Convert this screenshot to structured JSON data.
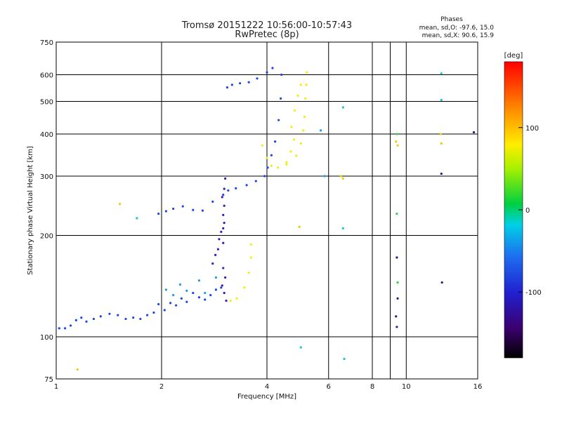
{
  "chart_data": {
    "type": "scatter",
    "title": "Tromsø 20151222 10:56:00-10:57:43",
    "subtitle": "RwPretec (8p)",
    "xlabel": "Frequency [MHz]",
    "ylabel": "Stationary phase Virtual Height [km]",
    "x_scale": "log",
    "y_scale": "log",
    "xlim": [
      1,
      16
    ],
    "ylim": [
      75,
      750
    ],
    "x_ticks": [
      1,
      2,
      4,
      6,
      8,
      10,
      16
    ],
    "x_tick_labels": [
      "1",
      "2",
      "4",
      "6",
      "8",
      "10",
      "16"
    ],
    "x_minor_ticks": [
      9
    ],
    "y_ticks": [
      75,
      100,
      200,
      300,
      400,
      500,
      600,
      750
    ],
    "y_tick_labels": [
      "75",
      "100",
      "200",
      "300",
      "400",
      "500",
      "600",
      "750"
    ],
    "grid": true,
    "annotation": {
      "title": "Phases",
      "line1": "mean, sd,O: -97.6, 15.0",
      "line2": "mean, sd,X:  90.6, 15.9"
    },
    "colorbar": {
      "label": "[deg]",
      "range": [
        -180,
        180
      ],
      "ticks": [
        100,
        0,
        -100
      ],
      "tick_labels": [
        "100",
        "0",
        "-100"
      ],
      "colormap": "rainbow"
    },
    "series": [
      {
        "phase_deg": -100,
        "color": "#1e46e6",
        "points": [
          [
            1.02,
            106
          ],
          [
            1.06,
            106
          ],
          [
            1.1,
            108
          ],
          [
            1.14,
            112
          ],
          [
            1.18,
            114
          ],
          [
            1.22,
            111
          ],
          [
            1.28,
            113
          ],
          [
            1.34,
            115
          ],
          [
            1.42,
            117
          ],
          [
            1.5,
            116
          ],
          [
            1.58,
            113
          ],
          [
            1.66,
            114
          ],
          [
            1.74,
            113
          ],
          [
            1.82,
            116
          ],
          [
            1.9,
            118
          ],
          [
            1.96,
            125
          ],
          [
            2.04,
            120
          ],
          [
            2.12,
            126
          ],
          [
            2.2,
            124
          ],
          [
            2.28,
            130
          ],
          [
            2.36,
            127
          ],
          [
            2.46,
            135
          ],
          [
            2.56,
            131
          ],
          [
            2.66,
            129
          ],
          [
            2.76,
            133
          ],
          [
            2.86,
            138
          ],
          [
            2.96,
            140
          ],
          [
            1.96,
            232
          ],
          [
            2.06,
            236
          ],
          [
            2.16,
            240
          ],
          [
            2.3,
            244
          ],
          [
            2.46,
            238
          ],
          [
            2.62,
            237
          ],
          [
            2.8,
            252
          ],
          [
            3.0,
            264
          ],
          [
            3.1,
            272
          ],
          [
            3.26,
            276
          ],
          [
            3.5,
            282
          ],
          [
            3.72,
            290
          ],
          [
            3.94,
            300
          ],
          [
            4.02,
            318
          ],
          [
            4.12,
            346
          ],
          [
            4.22,
            380
          ],
          [
            4.32,
            440
          ],
          [
            4.38,
            510
          ],
          [
            4.4,
            600
          ],
          [
            3.08,
            550
          ],
          [
            3.18,
            560
          ],
          [
            3.35,
            566
          ],
          [
            3.55,
            570
          ],
          [
            3.75,
            585
          ],
          [
            4.0,
            610
          ],
          [
            4.15,
            628
          ]
        ]
      },
      {
        "phase_deg": -130,
        "color": "#4018b8",
        "points": [
          [
            2.8,
            165
          ],
          [
            2.85,
            175
          ],
          [
            2.9,
            182
          ],
          [
            2.92,
            195
          ],
          [
            2.96,
            205
          ],
          [
            3.0,
            210
          ],
          [
            3.02,
            218
          ],
          [
            3.0,
            230
          ],
          [
            3.02,
            245
          ],
          [
            2.98,
            260
          ],
          [
            3.02,
            275
          ],
          [
            3.04,
            295
          ],
          [
            3.0,
            160
          ],
          [
            3.04,
            150
          ],
          [
            2.98,
            142
          ],
          [
            3.02,
            135
          ],
          [
            3.06,
            128
          ],
          [
            3.0,
            190
          ]
        ]
      },
      {
        "phase_deg": 100,
        "color": "#f0ee10",
        "points": [
          [
            3.88,
            370
          ],
          [
            4.0,
            340
          ],
          [
            4.12,
            322
          ],
          [
            4.3,
            318
          ],
          [
            4.55,
            325
          ],
          [
            4.85,
            345
          ],
          [
            5.0,
            375
          ],
          [
            5.08,
            410
          ],
          [
            5.12,
            450
          ],
          [
            5.15,
            510
          ],
          [
            5.18,
            560
          ],
          [
            5.2,
            610
          ],
          [
            4.7,
            420
          ],
          [
            4.8,
            470
          ],
          [
            4.9,
            520
          ],
          [
            5.0,
            560
          ],
          [
            4.55,
            330
          ],
          [
            4.68,
            355
          ],
          [
            4.78,
            385
          ],
          [
            3.15,
            128
          ],
          [
            3.28,
            130
          ],
          [
            3.45,
            140
          ],
          [
            3.55,
            155
          ],
          [
            3.6,
            172
          ],
          [
            3.6,
            188
          ]
        ]
      },
      {
        "phase_deg": -60,
        "color": "#1e9aeb",
        "points": [
          [
            2.06,
            138
          ],
          [
            2.16,
            133
          ],
          [
            2.26,
            143
          ],
          [
            2.36,
            137
          ],
          [
            2.56,
            147
          ],
          [
            2.66,
            135
          ],
          [
            2.86,
            150
          ],
          [
            5.7,
            410
          ],
          [
            5.85,
            300
          ]
        ]
      },
      {
        "phase_deg": 70,
        "color": "#f0c810",
        "points": [
          [
            1.15,
            80
          ],
          [
            1.52,
            248
          ],
          [
            4.95,
            212
          ],
          [
            6.5,
            300
          ],
          [
            6.6,
            295
          ],
          [
            9.35,
            380
          ],
          [
            9.45,
            370
          ],
          [
            12.55,
            400
          ],
          [
            12.6,
            375
          ]
        ]
      },
      {
        "phase_deg": -40,
        "color": "#20c0d0",
        "points": [
          [
            1.7,
            225
          ],
          [
            5.0,
            93
          ],
          [
            6.6,
            480
          ],
          [
            6.6,
            210
          ],
          [
            6.65,
            86
          ],
          [
            12.6,
            505
          ],
          [
            12.6,
            605
          ]
        ]
      },
      {
        "phase_deg": 20,
        "color": "#30d040",
        "points": [
          [
            9.4,
            232
          ],
          [
            9.45,
            145
          ],
          [
            9.4,
            400
          ]
        ]
      },
      {
        "phase_deg": -140,
        "color": "#3a1080",
        "points": [
          [
            9.4,
            172
          ],
          [
            9.45,
            130
          ],
          [
            9.35,
            115
          ],
          [
            9.4,
            107
          ],
          [
            12.6,
            305
          ],
          [
            12.65,
            145
          ],
          [
            15.6,
            405
          ]
        ]
      }
    ]
  }
}
